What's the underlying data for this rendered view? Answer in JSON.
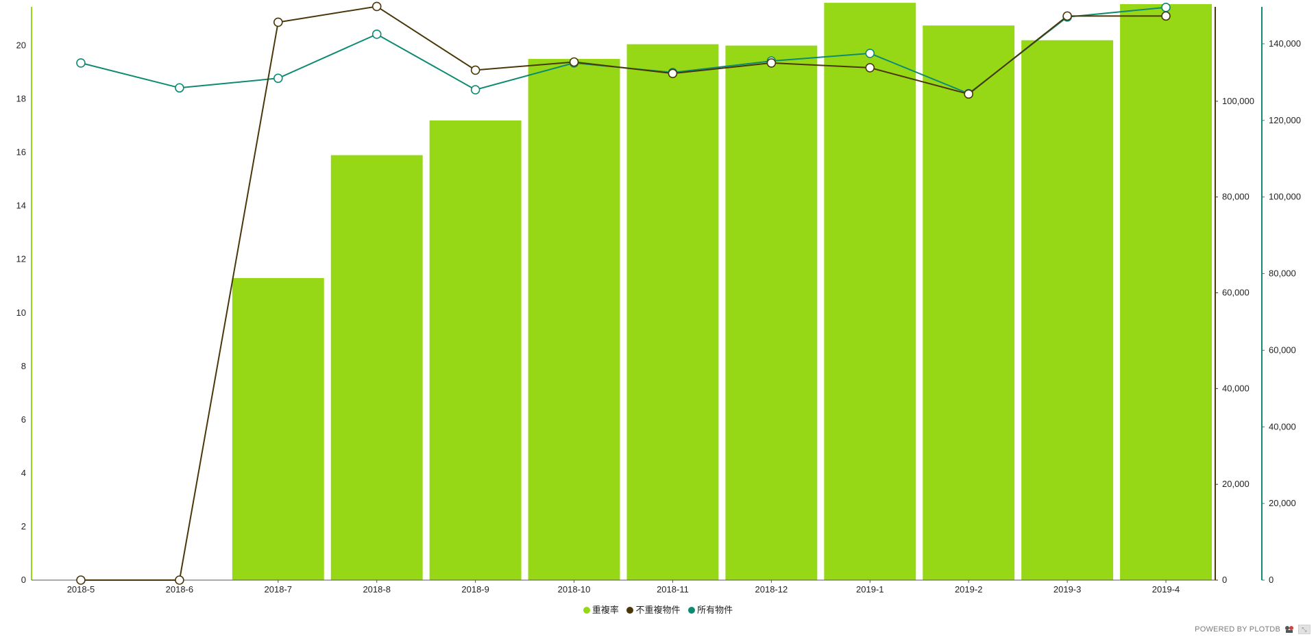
{
  "chart_data": {
    "type": "bar+line",
    "categories": [
      "2018-5",
      "2018-6",
      "2018-7",
      "2018-8",
      "2018-9",
      "2018-10",
      "2018-11",
      "2018-12",
      "2019-1",
      "2019-2",
      "2019-3",
      "2019-4"
    ],
    "series": [
      {
        "name": "重複率",
        "type": "bar",
        "axis": "left",
        "color": "#97d816",
        "values": [
          0,
          0,
          11.3,
          15.9,
          17.2,
          19.5,
          20.05,
          20.0,
          21.6,
          20.75,
          20.2,
          21.55
        ]
      },
      {
        "name": "不重複物件",
        "type": "line",
        "axis": "right1",
        "color": "#4a3608",
        "values": [
          0,
          0,
          116500,
          119800,
          106500,
          108200,
          105800,
          108000,
          107000,
          101500,
          117800,
          117800
        ]
      },
      {
        "name": "所有物件",
        "type": "line",
        "axis": "right2",
        "color": "#0e8a72",
        "values": [
          135000,
          128500,
          131000,
          142500,
          128000,
          135000,
          132500,
          135500,
          137500,
          127000,
          147000,
          149500
        ]
      }
    ],
    "axes": {
      "left": {
        "ylim": [
          0,
          21.5
        ],
        "ticks": [
          0,
          2,
          4,
          6,
          8,
          10,
          12,
          14,
          16,
          18,
          20
        ],
        "color": "#97d816"
      },
      "right1": {
        "ylim": [
          0,
          120000
        ],
        "ticks": [
          0,
          20000,
          40000,
          60000,
          80000,
          100000
        ],
        "color": "#4a3608"
      },
      "right2": {
        "ylim": [
          0,
          150000
        ],
        "ticks": [
          0,
          20000,
          40000,
          60000,
          80000,
          100000,
          120000,
          140000
        ],
        "color": "#0e8a72"
      }
    },
    "legend_position": "bottom-center",
    "grid": false
  },
  "legend": {
    "items": [
      {
        "label": "重複率",
        "color": "#97d816"
      },
      {
        "label": "不重複物件",
        "color": "#4a3608"
      },
      {
        "label": "所有物件",
        "color": "#0e8a72"
      }
    ]
  },
  "footer": {
    "powered_by": "POWERED BY PLOTDB"
  }
}
